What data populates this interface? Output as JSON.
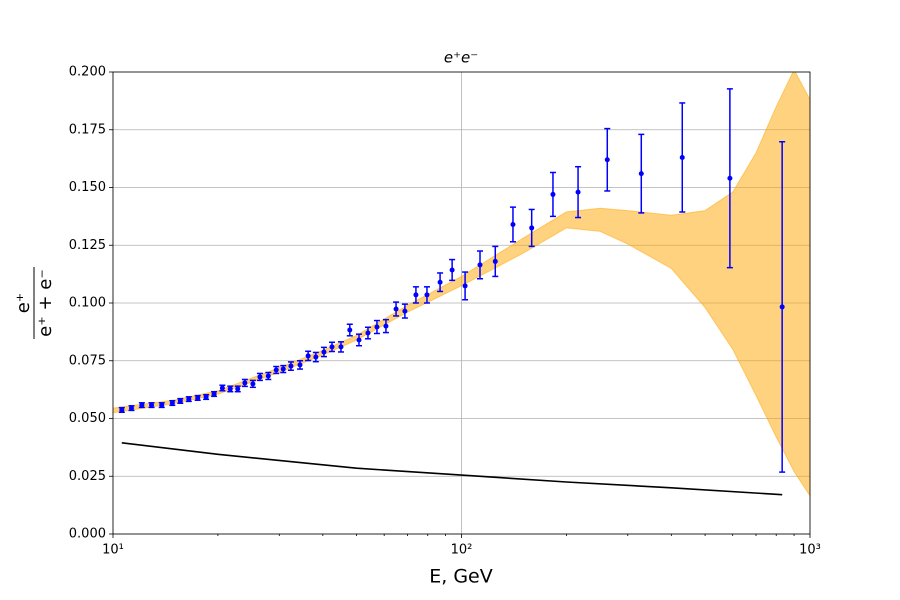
{
  "chart_data": {
    "type": "errorbar",
    "title": "e⁺e⁻",
    "xlabel": "E, GeV",
    "ylabel": {
      "numerator": "e⁺",
      "denominator": "e⁺ + e⁻"
    },
    "xscale": "log",
    "grid": true,
    "xlim": [
      10,
      1000
    ],
    "xticks": [
      {
        "value": 10,
        "label": "10¹"
      },
      {
        "value": 100,
        "label": "10²"
      },
      {
        "value": 1000,
        "label": "10³"
      }
    ],
    "xminorticks": [
      20,
      30,
      40,
      50,
      60,
      70,
      80,
      90,
      200,
      300,
      400,
      500,
      600,
      700,
      800,
      900
    ],
    "ylim": [
      0,
      0.2
    ],
    "yticks": [
      {
        "value": 0,
        "label": "0.000"
      },
      0.025,
      {
        "value": 0.05,
        "label": "0.050"
      },
      0.075,
      {
        "value": 0.1,
        "label": "0.100"
      },
      0.125,
      {
        "value": 0.15,
        "label": "0.150"
      },
      0.175,
      {
        "value": 0.2,
        "label": "0.200"
      }
    ],
    "series": [
      {
        "color": "#0000ff",
        "x": [
          10.6,
          11.3,
          12.1,
          12.9,
          13.8,
          14.8,
          15.6,
          16.5,
          17.5,
          18.5,
          19.5,
          20.6,
          21.7,
          22.8,
          23.9,
          25.2,
          26.4,
          27.9,
          29.4,
          30.8,
          32.4,
          34.4,
          36.3,
          38.2,
          40.3,
          42.5,
          45.1,
          47.8,
          50.8,
          53.9,
          57.2,
          60.7,
          64.9,
          68.8,
          74.0,
          79.6,
          86.8,
          94.0,
          102.4,
          113,
          125,
          140.5,
          159,
          183,
          216,
          262,
          328,
          430,
          589,
          832
        ],
        "values": [
          0.0537,
          0.0545,
          0.0558,
          0.0558,
          0.0558,
          0.0567,
          0.0576,
          0.0584,
          0.0589,
          0.0593,
          0.0606,
          0.0632,
          0.0628,
          0.0628,
          0.0654,
          0.065,
          0.068,
          0.0684,
          0.071,
          0.0714,
          0.0727,
          0.0732,
          0.0771,
          0.0766,
          0.0788,
          0.081,
          0.081,
          0.0883,
          0.084,
          0.087,
          0.0896,
          0.09,
          0.0974,
          0.0965,
          0.1035,
          0.1035,
          0.109,
          0.1143,
          0.1074,
          0.1165,
          0.118,
          0.134,
          0.1325,
          0.147,
          0.148,
          0.162,
          0.156,
          0.163,
          0.154,
          0.0983
        ],
        "errors": [
          0.001,
          0.001,
          0.001,
          0.001,
          0.001,
          0.001,
          0.001,
          0.001,
          0.001,
          0.001,
          0.001,
          0.0012,
          0.0012,
          0.0012,
          0.0015,
          0.0015,
          0.0015,
          0.0015,
          0.0015,
          0.0015,
          0.0018,
          0.0018,
          0.002,
          0.002,
          0.002,
          0.002,
          0.0022,
          0.0025,
          0.0025,
          0.0025,
          0.0028,
          0.0028,
          0.003,
          0.003,
          0.0035,
          0.0035,
          0.004,
          0.0045,
          0.006,
          0.006,
          0.0065,
          0.0075,
          0.008,
          0.0095,
          0.011,
          0.0135,
          0.017,
          0.0236,
          0.0387,
          0.0715
        ]
      }
    ],
    "band": {
      "color": "#ffa500",
      "x": [
        10,
        15,
        20,
        30,
        40,
        50,
        70,
        100,
        150,
        200,
        250,
        300,
        400,
        500,
        600,
        700,
        800,
        900,
        1000
      ],
      "lower": [
        0.0525,
        0.0565,
        0.0605,
        0.07,
        0.0775,
        0.084,
        0.096,
        0.1075,
        0.1215,
        0.1325,
        0.131,
        0.1255,
        0.115,
        0.098,
        0.08,
        0.06,
        0.042,
        0.027,
        0.0165
      ],
      "upper": [
        0.0545,
        0.058,
        0.062,
        0.072,
        0.0795,
        0.086,
        0.099,
        0.1115,
        0.128,
        0.1395,
        0.141,
        0.14,
        0.138,
        0.14,
        0.148,
        0.165,
        0.185,
        0.201,
        0.188
      ]
    },
    "line": {
      "color": "#000000",
      "x": [
        10.6,
        20,
        50,
        100,
        200,
        400,
        832
      ],
      "values": [
        0.0395,
        0.0345,
        0.0285,
        0.0255,
        0.0225,
        0.02,
        0.017
      ]
    }
  }
}
